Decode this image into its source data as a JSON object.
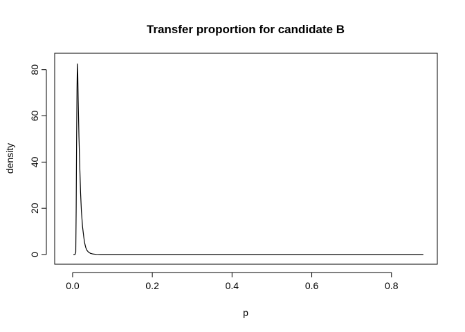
{
  "chart_data": {
    "type": "line",
    "title": "Transfer proportion for candidate B",
    "xlabel": "p",
    "ylabel": "density",
    "xlim": [
      -0.045,
      0.915
    ],
    "ylim": [
      -4.2,
      87.1
    ],
    "xticks": [
      0.0,
      0.2,
      0.4,
      0.6,
      0.8
    ],
    "xtick_labels": [
      "0.0",
      "0.2",
      "0.4",
      "0.6",
      "0.8"
    ],
    "yticks": [
      0,
      20,
      40,
      60,
      80
    ],
    "ytick_labels": [
      "0",
      "20",
      "40",
      "60",
      "80"
    ],
    "grid": false,
    "line_color": "#000000",
    "series": [
      {
        "x": [
          0.002,
          0.006,
          0.008,
          0.009,
          0.01,
          0.011,
          0.012,
          0.013,
          0.014,
          0.016,
          0.018,
          0.02,
          0.022,
          0.025,
          0.028,
          0.03,
          0.033,
          0.036,
          0.04,
          0.045,
          0.05,
          0.06,
          0.07,
          0.08,
          0.09,
          0.1,
          0.15,
          0.2,
          0.3,
          0.4,
          0.5,
          0.6,
          0.7,
          0.8,
          0.88
        ],
        "y": [
          0.0,
          0.0,
          1.0,
          20.0,
          50.0,
          72.0,
          82.5,
          78.0,
          67.0,
          51.0,
          38.0,
          27.0,
          19.0,
          12.0,
          7.5,
          5.2,
          3.0,
          1.8,
          1.0,
          0.5,
          0.25,
          0.05,
          0.0,
          0.0,
          0.0,
          0.0,
          0.0,
          0.0,
          0.0,
          0.0,
          0.0,
          0.0,
          0.0,
          0.0,
          0.0
        ]
      }
    ]
  }
}
